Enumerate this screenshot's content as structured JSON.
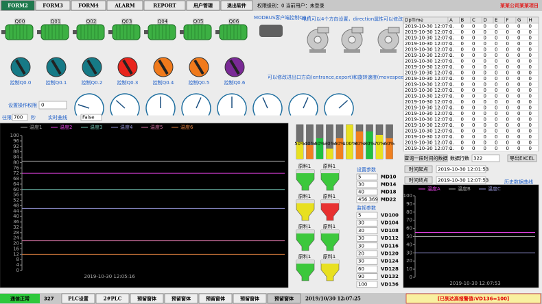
{
  "menu": [
    "FORM2",
    "FORM3",
    "FORM4",
    "ALARM",
    "REPORT",
    "用户管理",
    "退出软件"
  ],
  "status_user": "权限级别：0  当前用户：未登录",
  "project_title": "某某公司某某项目",
  "motors": [
    "Q00",
    "Q01",
    "Q02",
    "Q03",
    "Q04",
    "Q05",
    "Q06"
  ],
  "modbus_label": "MODBUS客户端控制Q0.7",
  "fan_note": "电机可以4个方向设置，direction属性可以修改",
  "knobs": [
    {
      "label": "控制Q0.0",
      "color": "#167a86"
    },
    {
      "label": "控制Q0.1",
      "color": "#167a86"
    },
    {
      "label": "控制Q0.2",
      "color": "#167a86"
    },
    {
      "label": "控制Q0.3",
      "color": "#e8241c"
    },
    {
      "label": "控制Q0.4",
      "color": "#f07a1c"
    },
    {
      "label": "控制Q0.5",
      "color": "#f07a1c"
    },
    {
      "label": "控制Q0.6",
      "color": "#7a2a96"
    }
  ],
  "gauge_note": "可以修改进出口方向(entrance,export)和旋转速度(movespeed)",
  "gauges": {
    "lim": [
      0,
      100
    ],
    "values": [
      20,
      30,
      50,
      60,
      50,
      40,
      60,
      70
    ]
  },
  "permission": {
    "label": "设置操作权限",
    "value": "0"
  },
  "trend_controls": {
    "label": "往限",
    "value": "700",
    "unit": "秒",
    "title": "实时曲线",
    "flag": "False"
  },
  "trend": {
    "x": [
      null,
      "2019-10-30 12:05:16",
      null,
      null
    ],
    "ylim": [
      0,
      100
    ],
    "yticks": [
      0,
      4,
      8,
      12,
      16,
      20,
      24,
      28,
      32,
      36,
      40,
      44,
      48,
      52,
      56,
      60,
      64,
      68,
      72,
      76,
      80,
      84,
      88,
      92,
      96,
      100
    ],
    "series": [
      {
        "name": "温度1",
        "color": "#a0a0a0",
        "values": [
          81,
          81,
          81,
          81
        ]
      },
      {
        "name": "温度2",
        "color": "#e040e0",
        "values": [
          72,
          72,
          72,
          72
        ]
      },
      {
        "name": "温度3",
        "color": "#70c0b0",
        "values": [
          60,
          60,
          60,
          60
        ]
      },
      {
        "name": "温度4",
        "color": "#9090d0",
        "values": [
          46,
          46,
          46,
          46
        ]
      },
      {
        "name": "温度5",
        "color": "#d070a0",
        "values": [
          22,
          22,
          22,
          22
        ]
      },
      {
        "name": "温度6",
        "color": "#e08040",
        "values": [
          12,
          12,
          12,
          12
        ]
      }
    ]
  },
  "levels": {
    "values": [
      50,
      40,
      60,
      30,
      60,
      100,
      80,
      80,
      70,
      60
    ],
    "value_labels": [
      "50%",
      "40%",
      "60%",
      "30%",
      "60%",
      "100%",
      "80%",
      "80%",
      "70%",
      "60%"
    ],
    "colors": [
      "#e8e020",
      "#f08020",
      "#20c040",
      "#e8e020",
      "#f08020",
      "#e8e020",
      "#f08020",
      "#20c040",
      "#e8e020",
      "#f08020"
    ]
  },
  "silos": [
    {
      "label": "原料1",
      "color": "#3cc83c"
    },
    {
      "label": "原料1",
      "color": "#3cc83c"
    },
    {
      "label": "原料1",
      "color": "#e8e020"
    },
    {
      "label": "原料1",
      "color": "#e83030"
    },
    {
      "label": "原料1",
      "color": "#3cc83c"
    },
    {
      "label": "原料1",
      "color": "#3cc83c"
    },
    {
      "label": "原料1",
      "color": "#3cc83c"
    },
    {
      "label": "原料1",
      "color": "#e8e020"
    }
  ],
  "settings": {
    "title": "设置参数",
    "rows": [
      [
        "5",
        "MD10"
      ],
      [
        "30",
        "MD14"
      ],
      [
        "40",
        "MD18"
      ],
      [
        "456.369",
        "MD22"
      ]
    ]
  },
  "monitor": {
    "title": "监视参数",
    "rows": [
      [
        "5",
        "VD100"
      ],
      [
        "30",
        "VD104"
      ],
      [
        "30",
        "VD108"
      ],
      [
        "30",
        "VD112"
      ],
      [
        "30",
        "VD116"
      ],
      [
        "20",
        "VD120"
      ],
      [
        "30",
        "VD124"
      ],
      [
        "60",
        "VD128"
      ],
      [
        "90",
        "VD132"
      ],
      [
        "100",
        "VD136"
      ]
    ]
  },
  "table": {
    "columns": [
      "DpTime",
      "A",
      "B",
      "C",
      "D",
      "E",
      "F",
      "G",
      "H"
    ],
    "rows": [
      [
        "2019-10-30 12:07:...",
        "0",
        "0",
        "0",
        "0",
        "0",
        "0",
        "0",
        "0"
      ],
      [
        "2019-10-30 12:07:...",
        "0",
        "0",
        "0",
        "0",
        "0",
        "0",
        "0",
        "0"
      ],
      [
        "2019-10-30 12:07:...",
        "0",
        "0",
        "0",
        "0",
        "0",
        "0",
        "0",
        "0"
      ],
      [
        "2019-10-30 12:07:...",
        "0",
        "0",
        "0",
        "0",
        "0",
        "0",
        "0",
        "0"
      ],
      [
        "2019-10-30 12:07:...",
        "0",
        "0",
        "0",
        "0",
        "0",
        "0",
        "0",
        "0"
      ],
      [
        "2019-10-30 12:07:...",
        "0",
        "0",
        "0",
        "0",
        "0",
        "0",
        "0",
        "0"
      ],
      [
        "2019-10-30 12:07:...",
        "0",
        "0",
        "0",
        "0",
        "0",
        "0",
        "0",
        "0"
      ],
      [
        "2019-10-30 12:07:...",
        "0",
        "0",
        "0",
        "0",
        "0",
        "0",
        "0",
        "0"
      ],
      [
        "2019-10-30 12:07:...",
        "0",
        "0",
        "0",
        "0",
        "0",
        "0",
        "0",
        "0"
      ],
      [
        "2019-10-30 12:07:...",
        "0",
        "0",
        "0",
        "0",
        "0",
        "0",
        "0",
        "0"
      ],
      [
        "2019-10-30 12:07:...",
        "0",
        "0",
        "0",
        "0",
        "0",
        "0",
        "0",
        "0"
      ],
      [
        "2019-10-30 12:07:...",
        "0",
        "0",
        "0",
        "0",
        "0",
        "0",
        "0",
        "0"
      ],
      [
        "2019-10-30 12:07:...",
        "0",
        "0",
        "0",
        "0",
        "0",
        "0",
        "0",
        "0"
      ],
      [
        "2019-10-30 12:07:...",
        "0",
        "0",
        "0",
        "0",
        "0",
        "0",
        "0",
        "0"
      ],
      [
        "2019-10-30 12:07:...",
        "0",
        "0",
        "0",
        "0",
        "0",
        "0",
        "0",
        "0"
      ],
      [
        "2019-10-30 12:07:...",
        "0",
        "0",
        "0",
        "0",
        "0",
        "0",
        "0",
        "0"
      ],
      [
        "2019-10-30 12:07:...",
        "0",
        "0",
        "0",
        "0",
        "0",
        "0",
        "0",
        "0"
      ],
      [
        "2019-10-30 12:07:...",
        "0",
        "0",
        "0",
        "0",
        "0",
        "0",
        "0",
        "0"
      ],
      [
        "2019-10-30 12:07:...",
        "0",
        "0",
        "0",
        "0",
        "0",
        "0",
        "0",
        "0"
      ],
      [
        "2019-10-30 12:07:...",
        "0",
        "0",
        "0",
        "0",
        "0",
        "0",
        "0",
        "0"
      ],
      [
        "2019-10-30 12:07:...",
        "0",
        "0",
        "0",
        "0",
        "0",
        "0",
        "0",
        "0"
      ],
      [
        "2019-10-30 12:07:...",
        "0",
        "0",
        "0",
        "0",
        "0",
        "0",
        "0",
        "0"
      ]
    ]
  },
  "query": {
    "button": "查询一段时间的数据",
    "count_label": "数据行数",
    "count": "322",
    "export": "导出EXCEL",
    "start_button": "时间起点",
    "start": "2019-10-30 12:01:53",
    "end_button": "时间终点",
    "end": "2019-10-30 12:07:53",
    "history_label": "历史数据曲线"
  },
  "history": {
    "x": [
      null,
      "2019-10-30 12:07:53",
      null
    ],
    "ylim": [
      0,
      100
    ],
    "yticks": [
      0,
      10,
      20,
      30,
      40,
      50,
      60,
      70,
      80,
      90,
      100
    ],
    "series": [
      {
        "name": "温度A",
        "color": "#e040e0",
        "values": [
          55,
          55,
          55
        ]
      },
      {
        "name": "温度B",
        "color": "#a0a0a0",
        "values": [
          50,
          50,
          50
        ]
      },
      {
        "name": "温度C",
        "color": "#9090d0",
        "values": [
          30,
          30,
          30
        ]
      }
    ]
  },
  "footer": {
    "comm": "通信正常",
    "count": "327",
    "buttons": [
      "PLC设置",
      "2#PLC",
      "预留窗体",
      "预留窗体",
      "预留窗体",
      "预留窗体",
      "预留窗体"
    ],
    "datetime": "2019/10/30 12:07:25",
    "alarm": "[已到达高报警值:VD136=100]"
  }
}
